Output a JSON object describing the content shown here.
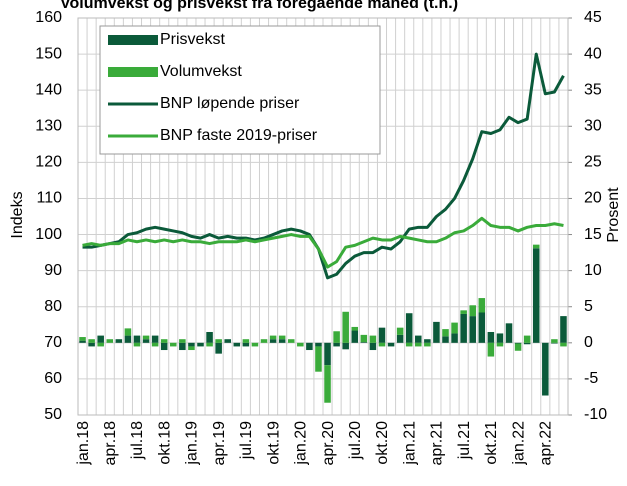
{
  "chart_data": {
    "type": "combo",
    "title": "Volumvekst og prisvekst fra foregående måned (t.h.)",
    "ylabel": "Indeks",
    "y2label": "Prosent",
    "categories": [
      "jan.18",
      null,
      null,
      "apr.18",
      null,
      null,
      "jul.18",
      null,
      null,
      "okt.18",
      null,
      null,
      "jan.19",
      null,
      null,
      "apr.19",
      null,
      null,
      "jul.19",
      null,
      null,
      "okt.19",
      null,
      null,
      "jan.20",
      null,
      null,
      "apr.20",
      null,
      null,
      "jul.20",
      null,
      null,
      "okt.20",
      null,
      null,
      "jan.21",
      null,
      null,
      "apr.21",
      null,
      null,
      "jul.21",
      null,
      null,
      "okt.21",
      null,
      null,
      "jan.22",
      null,
      null,
      "apr.22",
      null,
      null
    ],
    "ylim": [
      50,
      160
    ],
    "yticks": [
      50,
      60,
      70,
      80,
      90,
      100,
      110,
      120,
      130,
      140,
      150,
      160
    ],
    "y2lim": [
      -10,
      45
    ],
    "y2ticks": [
      -10,
      -5,
      0,
      5,
      10,
      15,
      20,
      25,
      30,
      35,
      40,
      45
    ],
    "grid": true,
    "legend": "upper left",
    "series": [
      {
        "name": "Prisvekst",
        "type": "bar",
        "axis": "y2",
        "color": "#0b5a3a",
        "values": [
          0.3,
          -0.5,
          1.0,
          0,
          0.5,
          1.0,
          1.0,
          0.5,
          1.0,
          -1.0,
          0,
          -1.0,
          -0.5,
          -0.5,
          1.5,
          -1.5,
          0.5,
          -0.5,
          -0.5,
          0,
          0,
          0.5,
          0.5,
          0,
          0,
          -1.0,
          -0.5,
          -3.1,
          -0.5,
          -0.9,
          1.7,
          0.1,
          -1.0,
          2.1,
          -0.5,
          1.1,
          4.1,
          1.0,
          0.5,
          2.9,
          0.9,
          1.3,
          4.0,
          3.7,
          4.2,
          1.5,
          1.3,
          2.7,
          -0.1,
          -0.2,
          13.1,
          -7.3,
          -0.1,
          3.7
        ]
      },
      {
        "name": "Volumvekst",
        "type": "bar",
        "axis": "y2",
        "color": "#3aab3a",
        "values": [
          0.5,
          0.5,
          -0.5,
          0.5,
          0,
          1.0,
          -0.5,
          0.5,
          -0.5,
          0.5,
          -0.5,
          0.5,
          -0.5,
          0,
          -0.5,
          0.5,
          0,
          0,
          0.5,
          -0.5,
          0.5,
          0.5,
          0.5,
          0.5,
          -0.5,
          0,
          -3.5,
          -5.2,
          1.6,
          4.3,
          0.5,
          1.0,
          1.0,
          -0.5,
          0,
          1.0,
          -0.5,
          -0.5,
          -0.5,
          0,
          1.0,
          1.5,
          0.5,
          1.5,
          2.0,
          -1.9,
          -0.5,
          0,
          -1.0,
          1.0,
          0.5,
          0,
          0.5,
          -0.5
        ]
      },
      {
        "name": "BNP løpende priser",
        "type": "line",
        "color": "#0b5a3a",
        "values": [
          96.5,
          96.5,
          97,
          97.5,
          98,
          100,
          100.5,
          101.5,
          102,
          101.5,
          101,
          100.5,
          99.5,
          99,
          100,
          99,
          99.5,
          99,
          99,
          98.5,
          99,
          100,
          101,
          101.5,
          101,
          100,
          96,
          88,
          89,
          92,
          94,
          95,
          95,
          96.5,
          96,
          98,
          101.5,
          102,
          102,
          105,
          107,
          110,
          115,
          121,
          128.5,
          128,
          129,
          132.5,
          131,
          132,
          150,
          139,
          139.5,
          144
        ]
      },
      {
        "name": "BNP faste 2019-priser",
        "type": "line",
        "color": "#3aab3a",
        "values": [
          97,
          97.5,
          97,
          97.5,
          97.5,
          98.5,
          98,
          98.5,
          98,
          98.5,
          98,
          98.5,
          98,
          98,
          97.5,
          98,
          98,
          98,
          98.5,
          98,
          98.5,
          99,
          99.5,
          100,
          99.5,
          99.5,
          96,
          91,
          92.5,
          96.5,
          97,
          98,
          99,
          98.5,
          98.5,
          99.5,
          99,
          98.5,
          98,
          98,
          99,
          100.5,
          101,
          102.5,
          104.5,
          102.5,
          102,
          102,
          101,
          102,
          102.5,
          102.5,
          103,
          102.5
        ]
      }
    ]
  }
}
